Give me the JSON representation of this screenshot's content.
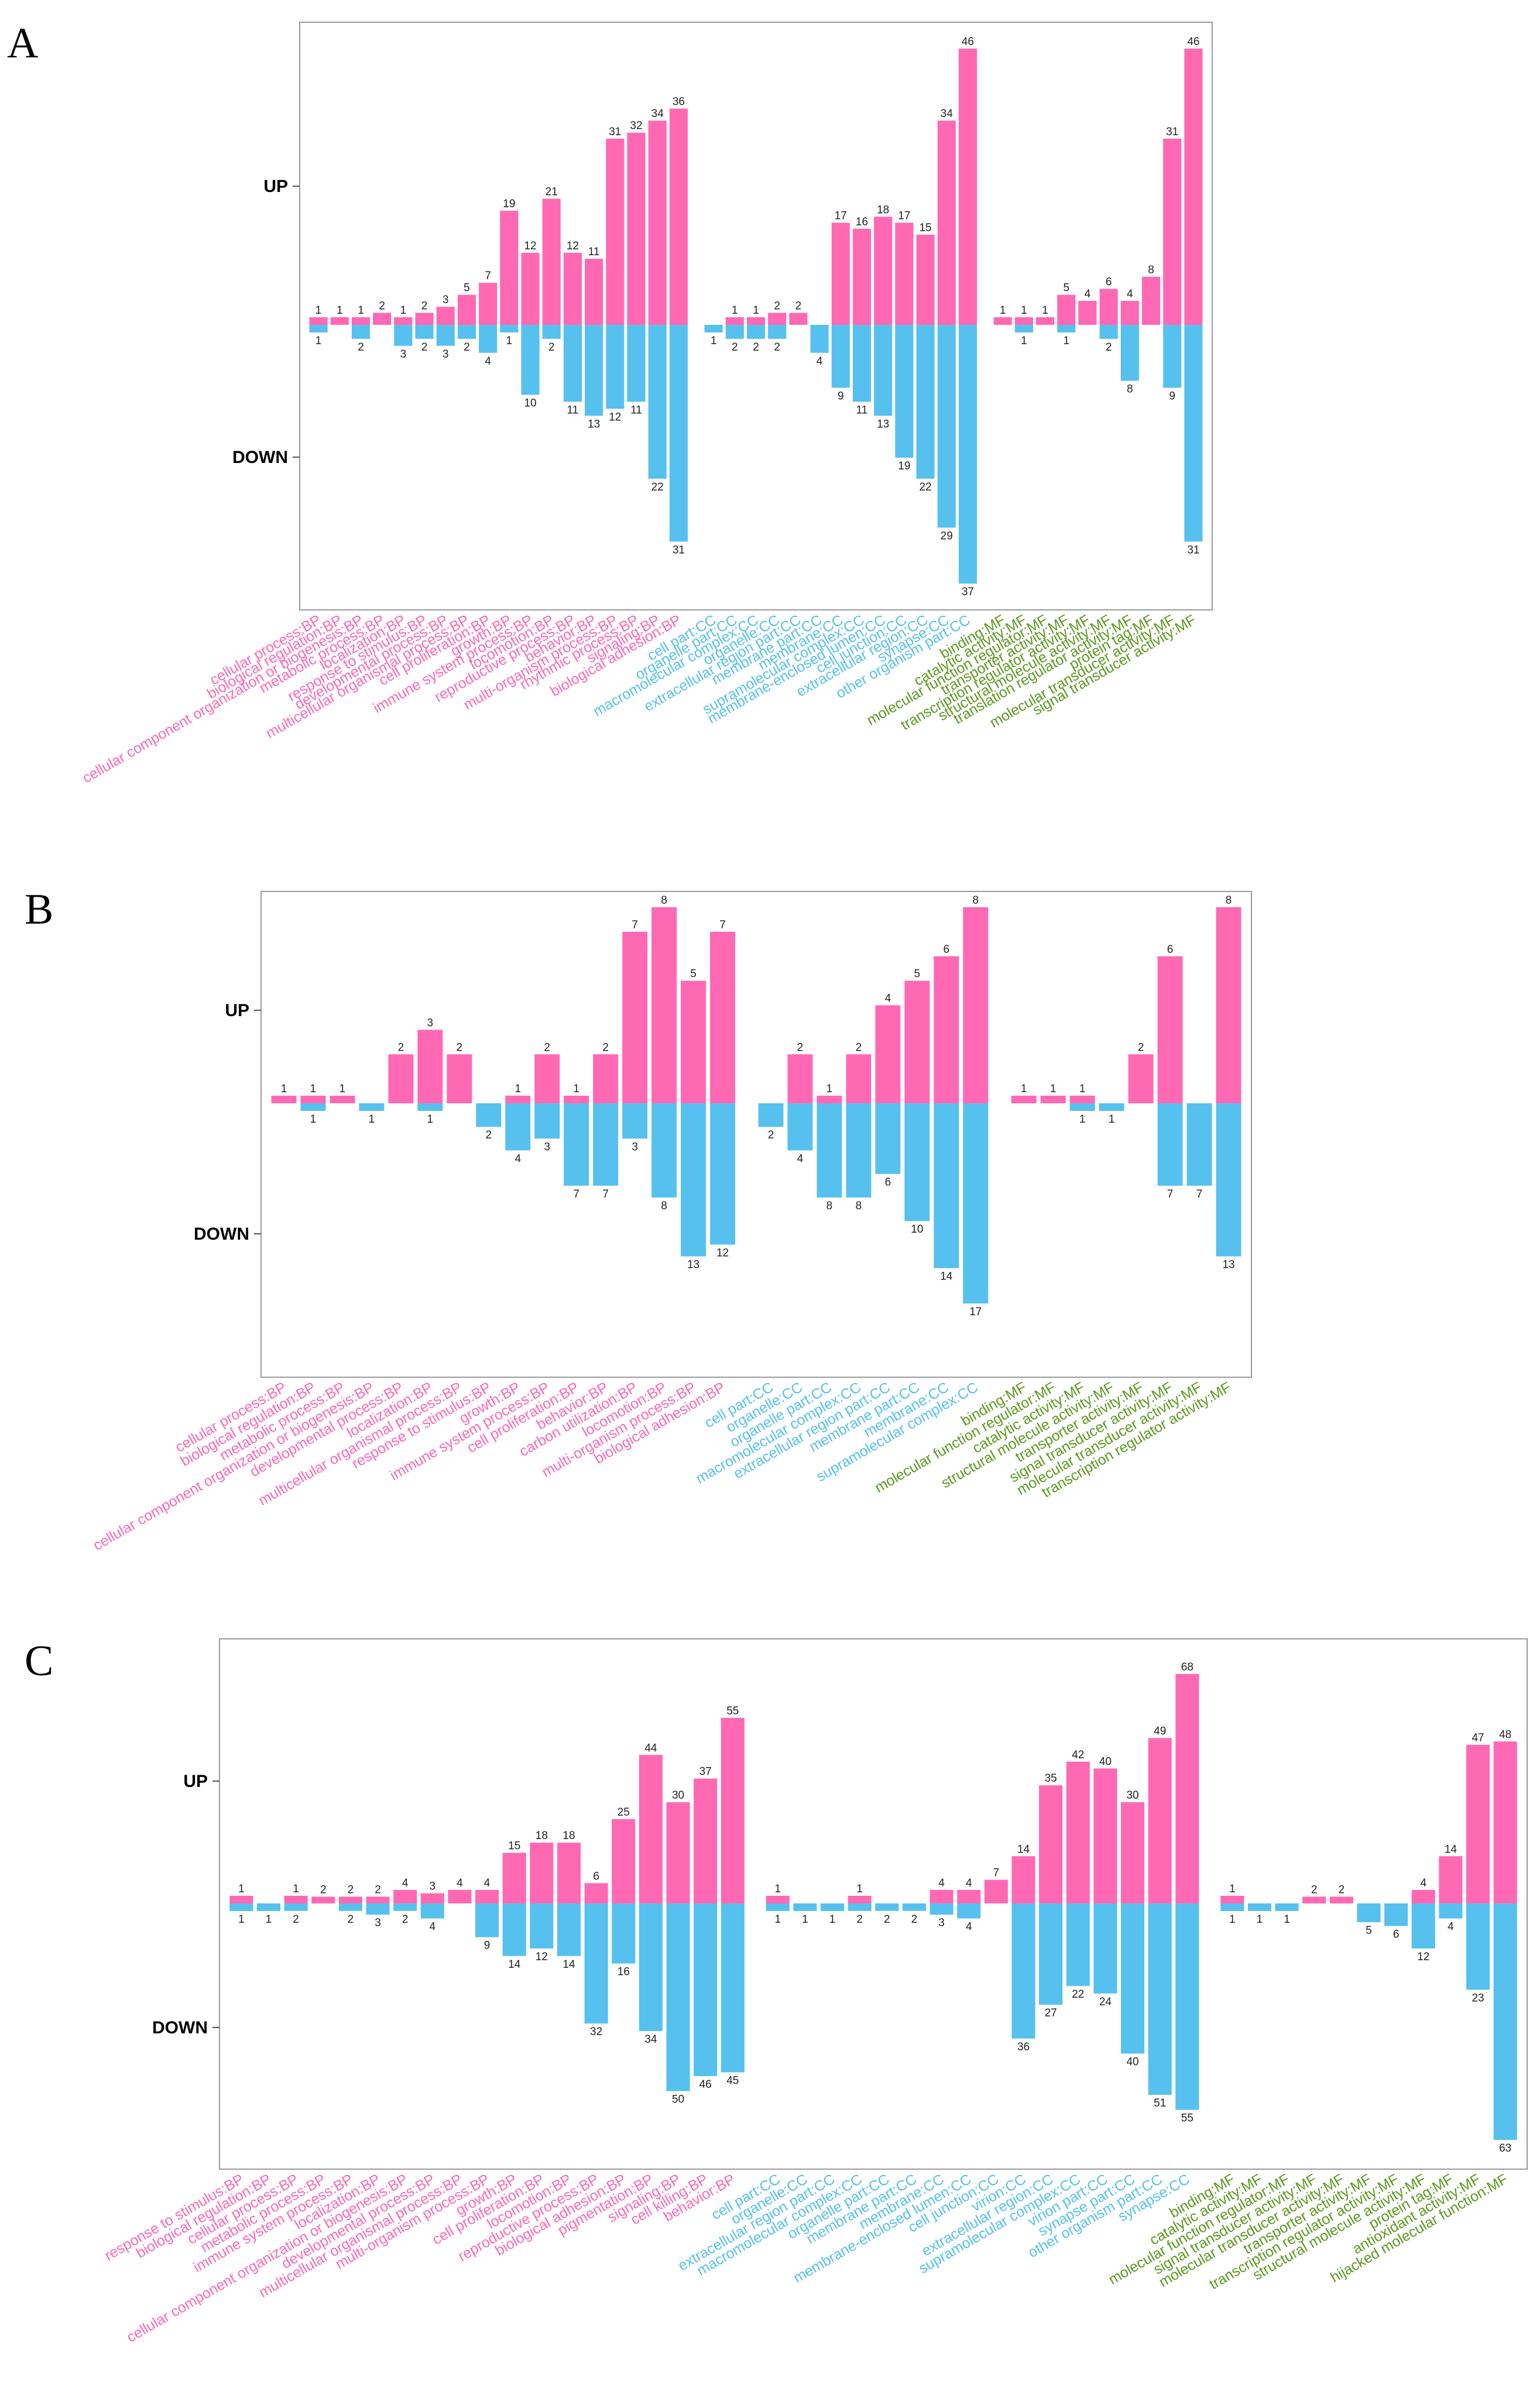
{
  "colors": {
    "up": "#FF69B4",
    "down": "#56C1EE",
    "BP": "#FF69B4",
    "CC": "#56C1EE",
    "MF": "#5A9A1F"
  },
  "y_tick_labels": [
    "UP",
    "DOWN"
  ],
  "chart_data": [
    {
      "panel": "A",
      "type": "bar",
      "up_ref": 5,
      "down_ref": 10,
      "categories": [
        {
          "name": "cellular process:BP",
          "group": "BP",
          "up": 1,
          "down": 1
        },
        {
          "name": "biological regulation:BP",
          "group": "BP",
          "up": 1,
          "down": null
        },
        {
          "name": "cellular component organization or biogenesis:BP",
          "group": "BP",
          "up": 1,
          "down": 2
        },
        {
          "name": "metabolic process:BP",
          "group": "BP",
          "up": 2,
          "down": null
        },
        {
          "name": "localization:BP",
          "group": "BP",
          "up": 1,
          "down": 3
        },
        {
          "name": "response to stimulus:BP",
          "group": "BP",
          "up": 2,
          "down": 2
        },
        {
          "name": "developmental process:BP",
          "group": "BP",
          "up": 3,
          "down": 3
        },
        {
          "name": "multicellular organismal process:BP",
          "group": "BP",
          "up": 5,
          "down": 2
        },
        {
          "name": "cell proliferation:BP",
          "group": "BP",
          "up": 7,
          "down": 4
        },
        {
          "name": "growth:BP",
          "group": "BP",
          "up": 19,
          "down": 1
        },
        {
          "name": "immune system process:BP",
          "group": "BP",
          "up": 12,
          "down": 10
        },
        {
          "name": "locomotion:BP",
          "group": "BP",
          "up": 21,
          "down": 2
        },
        {
          "name": "reproductive process:BP",
          "group": "BP",
          "up": 12,
          "down": 11
        },
        {
          "name": "behavior:BP",
          "group": "BP",
          "up": 11,
          "down": 13
        },
        {
          "name": "multi-organism process:BP",
          "group": "BP",
          "up": 31,
          "down": 12
        },
        {
          "name": "rhythmic process:BP",
          "group": "BP",
          "up": 32,
          "down": 11
        },
        {
          "name": "signaling:BP",
          "group": "BP",
          "up": 34,
          "down": 22
        },
        {
          "name": "biological adhesion:BP",
          "group": "BP",
          "up": 36,
          "down": 31
        },
        {
          "name": "cell part:CC",
          "group": "CC",
          "up": null,
          "down": 1
        },
        {
          "name": "organelle part:CC",
          "group": "CC",
          "up": 1,
          "down": 2
        },
        {
          "name": "macromolecular complex:CC",
          "group": "CC",
          "up": 1,
          "down": 2
        },
        {
          "name": "organelle:CC",
          "group": "CC",
          "up": 2,
          "down": 2
        },
        {
          "name": "extracellular region part:CC",
          "group": "CC",
          "up": 2,
          "down": null
        },
        {
          "name": "membrane part:CC",
          "group": "CC",
          "up": null,
          "down": 4
        },
        {
          "name": "membrane:CC",
          "group": "CC",
          "up": 17,
          "down": 9
        },
        {
          "name": "supramolecular complex:CC",
          "group": "CC",
          "up": 16,
          "down": 11
        },
        {
          "name": "membrane-enclosed lumen:CC",
          "group": "CC",
          "up": 18,
          "down": 13
        },
        {
          "name": "cell junction:CC",
          "group": "CC",
          "up": 17,
          "down": 19
        },
        {
          "name": "extracellular region:CC",
          "group": "CC",
          "up": 15,
          "down": 22
        },
        {
          "name": "synapse:CC",
          "group": "CC",
          "up": 34,
          "down": 29
        },
        {
          "name": "other organism part:CC",
          "group": "CC",
          "up": 46,
          "down": 37
        },
        {
          "name": "binding:MF",
          "group": "MF",
          "up": 1,
          "down": null
        },
        {
          "name": "catalytic activity:MF",
          "group": "MF",
          "up": 1,
          "down": 1
        },
        {
          "name": "molecular function regulator:MF",
          "group": "MF",
          "up": 1,
          "down": null
        },
        {
          "name": "transporter activity:MF",
          "group": "MF",
          "up": 5,
          "down": 1
        },
        {
          "name": "transcription regulator activity:MF",
          "group": "MF",
          "up": 4,
          "down": null
        },
        {
          "name": "structural molecule activity:MF",
          "group": "MF",
          "up": 6,
          "down": 2
        },
        {
          "name": "translation regulator activity:MF",
          "group": "MF",
          "up": 4,
          "down": 8
        },
        {
          "name": "protein tag:MF",
          "group": "MF",
          "up": 8,
          "down": null
        },
        {
          "name": "molecular transducer activity:MF",
          "group": "MF",
          "up": 31,
          "down": 9
        },
        {
          "name": "signal transducer activity:MF",
          "group": "MF",
          "up": 46,
          "down": 31
        }
      ]
    },
    {
      "panel": "B",
      "type": "bar",
      "up_ref": 2,
      "down_ref": 4,
      "categories": [
        {
          "name": "cellular process:BP",
          "group": "BP",
          "up": 1,
          "down": null
        },
        {
          "name": "biological regulation:BP",
          "group": "BP",
          "up": 1,
          "down": 1
        },
        {
          "name": "metabolic process:BP",
          "group": "BP",
          "up": 1,
          "down": null
        },
        {
          "name": "cellular component organization or biogenesis:BP",
          "group": "BP",
          "up": null,
          "down": 1
        },
        {
          "name": "developmental process:BP",
          "group": "BP",
          "up": 2,
          "down": null
        },
        {
          "name": "localization:BP",
          "group": "BP",
          "up": 3,
          "down": 1
        },
        {
          "name": "multicellular organismal process:BP",
          "group": "BP",
          "up": 2,
          "down": null
        },
        {
          "name": "response to stimulus:BP",
          "group": "BP",
          "up": null,
          "down": 2
        },
        {
          "name": "growth:BP",
          "group": "BP",
          "up": 1,
          "down": 4
        },
        {
          "name": "immune system process:BP",
          "group": "BP",
          "up": 2,
          "down": 3
        },
        {
          "name": "cell proliferation:BP",
          "group": "BP",
          "up": 1,
          "down": 7
        },
        {
          "name": "behavior:BP",
          "group": "BP",
          "up": 2,
          "down": 7
        },
        {
          "name": "carbon utilization:BP",
          "group": "BP",
          "up": 7,
          "down": 3
        },
        {
          "name": "locomotion:BP",
          "group": "BP",
          "up": 8,
          "down": 8
        },
        {
          "name": "multi-organism process:BP",
          "group": "BP",
          "up": 5,
          "down": 13
        },
        {
          "name": "biological adhesion:BP",
          "group": "BP",
          "up": 7,
          "down": 12
        },
        {
          "name": "cell part:CC",
          "group": "CC",
          "up": null,
          "down": 2
        },
        {
          "name": "organelle:CC",
          "group": "CC",
          "up": 2,
          "down": 4
        },
        {
          "name": "organelle part:CC",
          "group": "CC",
          "up": 1,
          "down": 8
        },
        {
          "name": "macromolecular complex:CC",
          "group": "CC",
          "up": 2,
          "down": 8
        },
        {
          "name": "extracellular region part:CC",
          "group": "CC",
          "up": 4,
          "down": 6
        },
        {
          "name": "membrane part:CC",
          "group": "CC",
          "up": 5,
          "down": 10
        },
        {
          "name": "membrane:CC",
          "group": "CC",
          "up": 6,
          "down": 14
        },
        {
          "name": "supramolecular complex:CC",
          "group": "CC",
          "up": 8,
          "down": 17
        },
        {
          "name": "binding:MF",
          "group": "MF",
          "up": 1,
          "down": null
        },
        {
          "name": "molecular function regulator:MF",
          "group": "MF",
          "up": 1,
          "down": null
        },
        {
          "name": "catalytic activity:MF",
          "group": "MF",
          "up": 1,
          "down": 1
        },
        {
          "name": "structural molecule activity:MF",
          "group": "MF",
          "up": null,
          "down": 1
        },
        {
          "name": "transporter activity:MF",
          "group": "MF",
          "up": 2,
          "down": null
        },
        {
          "name": "signal transducer activity:MF",
          "group": "MF",
          "up": 6,
          "down": 7
        },
        {
          "name": "molecular transducer activity:MF",
          "group": "MF",
          "up": null,
          "down": 7
        },
        {
          "name": "transcription regulator activity:MF",
          "group": "MF",
          "up": 8,
          "down": 13
        }
      ]
    },
    {
      "panel": "C",
      "type": "bar",
      "up_ref": 4,
      "down_ref": 8,
      "categories": [
        {
          "name": "response to stimulus:BP",
          "group": "BP",
          "up": 1,
          "down": 1
        },
        {
          "name": "biological regulation:BP",
          "group": "BP",
          "up": null,
          "down": 1
        },
        {
          "name": "cellular process:BP",
          "group": "BP",
          "up": 1,
          "down": 2
        },
        {
          "name": "metabolic process:BP",
          "group": "BP",
          "up": 2,
          "down": null
        },
        {
          "name": "immune system process:BP",
          "group": "BP",
          "up": 2,
          "down": 2
        },
        {
          "name": "localization:BP",
          "group": "BP",
          "up": 2,
          "down": 3
        },
        {
          "name": "cellular component organization or biogenesis:BP",
          "group": "BP",
          "up": 4,
          "down": 2
        },
        {
          "name": "developmental process:BP",
          "group": "BP",
          "up": 3,
          "down": 4
        },
        {
          "name": "multicellular organismal process:BP",
          "group": "BP",
          "up": 4,
          "down": null
        },
        {
          "name": "multi-organism process:BP",
          "group": "BP",
          "up": 4,
          "down": 9
        },
        {
          "name": "growth:BP",
          "group": "BP",
          "up": 15,
          "down": 14
        },
        {
          "name": "cell proliferation:BP",
          "group": "BP",
          "up": 18,
          "down": 12
        },
        {
          "name": "locomotion:BP",
          "group": "BP",
          "up": 18,
          "down": 14
        },
        {
          "name": "reproductive process:BP",
          "group": "BP",
          "up": 6,
          "down": 32
        },
        {
          "name": "biological adhesion:BP",
          "group": "BP",
          "up": 25,
          "down": 16
        },
        {
          "name": "pigmentation:BP",
          "group": "BP",
          "up": 44,
          "down": 34
        },
        {
          "name": "signaling:BP",
          "group": "BP",
          "up": 30,
          "down": 50
        },
        {
          "name": "cell killing:BP",
          "group": "BP",
          "up": 37,
          "down": 46
        },
        {
          "name": "behavior:BP",
          "group": "BP",
          "up": 55,
          "down": 45
        },
        {
          "name": "cell part:CC",
          "group": "CC",
          "up": 1,
          "down": 1
        },
        {
          "name": "organelle:CC",
          "group": "CC",
          "up": null,
          "down": 1
        },
        {
          "name": "extracellular region part:CC",
          "group": "CC",
          "up": null,
          "down": 1
        },
        {
          "name": "macromolecular complex:CC",
          "group": "CC",
          "up": 1,
          "down": 2
        },
        {
          "name": "organelle part:CC",
          "group": "CC",
          "up": null,
          "down": 2
        },
        {
          "name": "membrane part:CC",
          "group": "CC",
          "up": null,
          "down": 2
        },
        {
          "name": "membrane:CC",
          "group": "CC",
          "up": 4,
          "down": 3
        },
        {
          "name": "membrane-enclosed lumen:CC",
          "group": "CC",
          "up": 4,
          "down": 4
        },
        {
          "name": "cell junction:CC",
          "group": "CC",
          "up": 7,
          "down": null
        },
        {
          "name": "virion:CC",
          "group": "CC",
          "up": 14,
          "down": 36
        },
        {
          "name": "extracellular region:CC",
          "group": "CC",
          "up": 35,
          "down": 27
        },
        {
          "name": "supramolecular complex:CC",
          "group": "CC",
          "up": 42,
          "down": 22
        },
        {
          "name": "virion part:CC",
          "group": "CC",
          "up": 40,
          "down": 24
        },
        {
          "name": "synapse part:CC",
          "group": "CC",
          "up": 30,
          "down": 40
        },
        {
          "name": "other organism part:CC",
          "group": "CC",
          "up": 49,
          "down": 51
        },
        {
          "name": "synapse:CC",
          "group": "CC",
          "up": 68,
          "down": 55
        },
        {
          "name": "binding:MF",
          "group": "MF",
          "up": 1,
          "down": 1
        },
        {
          "name": "catalytic activity:MF",
          "group": "MF",
          "up": null,
          "down": 1
        },
        {
          "name": "molecular function regulator:MF",
          "group": "MF",
          "up": null,
          "down": 1
        },
        {
          "name": "signal transducer activity:MF",
          "group": "MF",
          "up": 2,
          "down": null
        },
        {
          "name": "molecular transducer activity:MF",
          "group": "MF",
          "up": 2,
          "down": null
        },
        {
          "name": "transporter activity:MF",
          "group": "MF",
          "up": null,
          "down": 5
        },
        {
          "name": "transcription regulator activity:MF",
          "group": "MF",
          "up": null,
          "down": 6
        },
        {
          "name": "structural molecule activity:MF",
          "group": "MF",
          "up": 4,
          "down": 12
        },
        {
          "name": "protein tag:MF",
          "group": "MF",
          "up": 14,
          "down": 4
        },
        {
          "name": "antioxidant activity:MF",
          "group": "MF",
          "up": 47,
          "down": 23
        },
        {
          "name": "hijacked molecular function:MF",
          "group": "MF",
          "up": 48,
          "down": 63
        }
      ]
    }
  ]
}
